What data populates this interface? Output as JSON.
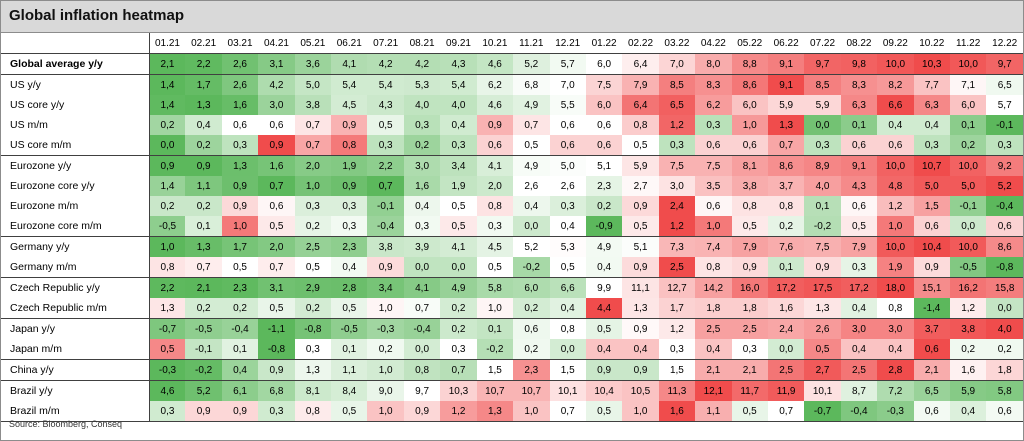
{
  "title": "Global inflation heatmap",
  "source": "Source: Bloomberg, Conseq",
  "colors": {
    "low": "#5cb85c",
    "mid": "#ffffff",
    "high": "#f04c4c"
  },
  "chart_data": {
    "type": "heatmap",
    "columns": [
      "01.21",
      "02.21",
      "03.21",
      "04.21",
      "05.21",
      "06.21",
      "07.21",
      "08.21",
      "09.21",
      "10.21",
      "11.21",
      "12.21",
      "01.22",
      "02.22",
      "03.22",
      "04.22",
      "05.22",
      "06.22",
      "07.22",
      "08.22",
      "09.22",
      "10.22",
      "11.22",
      "12.22"
    ],
    "rows": [
      {
        "label": "Global average y/y",
        "values": [
          "2,1",
          "2,2",
          "2,6",
          "3,1",
          "3,6",
          "4,1",
          "4,2",
          "4,2",
          "4,3",
          "4,6",
          "5,2",
          "5,7",
          "6,0",
          "6,4",
          "7,0",
          "8,0",
          "8,8",
          "9,1",
          "9,7",
          "9,8",
          "10,0",
          "10,3",
          "10,0",
          "9,7"
        ]
      },
      {
        "label": "US y/y",
        "values": [
          "1,4",
          "1,7",
          "2,6",
          "4,2",
          "5,0",
          "5,4",
          "5,4",
          "5,3",
          "5,4",
          "6,2",
          "6,8",
          "7,0",
          "7,5",
          "7,9",
          "8,5",
          "8,3",
          "8,6",
          "9,1",
          "8,5",
          "8,3",
          "8,2",
          "7,7",
          "7,1",
          "6,5"
        ]
      },
      {
        "label": "US core y/y",
        "values": [
          "1,4",
          "1,3",
          "1,6",
          "3,0",
          "3,8",
          "4,5",
          "4,3",
          "4,0",
          "4,0",
          "4,6",
          "4,9",
          "5,5",
          "6,0",
          "6,4",
          "6,5",
          "6,2",
          "6,0",
          "5,9",
          "5,9",
          "6,3",
          "6,6",
          "6,3",
          "6,0",
          "5,7"
        ]
      },
      {
        "label": "US m/m",
        "values": [
          "0,2",
          "0,4",
          "0,6",
          "0,6",
          "0,7",
          "0,9",
          "0,5",
          "0,3",
          "0,4",
          "0,9",
          "0,7",
          "0,6",
          "0,6",
          "0,8",
          "1,2",
          "0,3",
          "1,0",
          "1,3",
          "0,0",
          "0,1",
          "0,4",
          "0,4",
          "0,1",
          "-0,1"
        ]
      },
      {
        "label": "US core m/m",
        "values": [
          "0,0",
          "0,2",
          "0,3",
          "0,9",
          "0,7",
          "0,8",
          "0,3",
          "0,2",
          "0,3",
          "0,6",
          "0,5",
          "0,6",
          "0,6",
          "0,5",
          "0,3",
          "0,6",
          "0,6",
          "0,7",
          "0,3",
          "0,6",
          "0,6",
          "0,3",
          "0,2",
          "0,3"
        ]
      },
      {
        "label": "Eurozone y/y",
        "values": [
          "0,9",
          "0,9",
          "1,3",
          "1,6",
          "2,0",
          "1,9",
          "2,2",
          "3,0",
          "3,4",
          "4,1",
          "4,9",
          "5,0",
          "5,1",
          "5,9",
          "7,5",
          "7,5",
          "8,1",
          "8,6",
          "8,9",
          "9,1",
          "10,0",
          "10,7",
          "10,0",
          "9,2"
        ]
      },
      {
        "label": "Eurozone core y/y",
        "values": [
          "1,4",
          "1,1",
          "0,9",
          "0,7",
          "1,0",
          "0,9",
          "0,7",
          "1,6",
          "1,9",
          "2,0",
          "2,6",
          "2,6",
          "2,3",
          "2,7",
          "3,0",
          "3,5",
          "3,8",
          "3,7",
          "4,0",
          "4,3",
          "4,8",
          "5,0",
          "5,0",
          "5,2"
        ]
      },
      {
        "label": "Eurozone m/m",
        "values": [
          "0,2",
          "0,2",
          "0,9",
          "0,6",
          "0,3",
          "0,3",
          "-0,1",
          "0,4",
          "0,5",
          "0,8",
          "0,4",
          "0,3",
          "0,2",
          "0,9",
          "2,4",
          "0,6",
          "0,8",
          "0,8",
          "0,1",
          "0,6",
          "1,2",
          "1,5",
          "-0,1",
          "-0,4"
        ]
      },
      {
        "label": "Eurozone core m/m",
        "values": [
          "-0,5",
          "0,1",
          "1,0",
          "0,5",
          "0,2",
          "0,3",
          "-0,4",
          "0,3",
          "0,5",
          "0,3",
          "0,0",
          "0,4",
          "-0,9",
          "0,5",
          "1,2",
          "1,0",
          "0,5",
          "0,2",
          "-0,2",
          "0,5",
          "1,0",
          "0,6",
          "0,0",
          "0,6"
        ]
      },
      {
        "label": "Germany y/y",
        "values": [
          "1,0",
          "1,3",
          "1,7",
          "2,0",
          "2,5",
          "2,3",
          "3,8",
          "3,9",
          "4,1",
          "4,5",
          "5,2",
          "5,3",
          "4,9",
          "5,1",
          "7,3",
          "7,4",
          "7,9",
          "7,6",
          "7,5",
          "7,9",
          "10,0",
          "10,4",
          "10,0",
          "8,6"
        ]
      },
      {
        "label": "Germany m/m",
        "values": [
          "0,8",
          "0,7",
          "0,5",
          "0,7",
          "0,5",
          "0,4",
          "0,9",
          "0,0",
          "0,0",
          "0,5",
          "-0,2",
          "0,5",
          "0,4",
          "0,9",
          "2,5",
          "0,8",
          "0,9",
          "0,1",
          "0,9",
          "0,3",
          "1,9",
          "0,9",
          "-0,5",
          "-0,8"
        ]
      },
      {
        "label": "Czech Republic y/y",
        "values": [
          "2,2",
          "2,1",
          "2,3",
          "3,1",
          "2,9",
          "2,8",
          "3,4",
          "4,1",
          "4,9",
          "5,8",
          "6,0",
          "6,6",
          "9,9",
          "11,1",
          "12,7",
          "14,2",
          "16,0",
          "17,2",
          "17,5",
          "17,2",
          "18,0",
          "15,1",
          "16,2",
          "15,8"
        ]
      },
      {
        "label": "Czech Republic m/m",
        "values": [
          "1,3",
          "0,2",
          "0,2",
          "0,5",
          "0,2",
          "0,5",
          "1,0",
          "0,7",
          "0,2",
          "1,0",
          "0,2",
          "0,4",
          "4,4",
          "1,3",
          "1,7",
          "1,8",
          "1,8",
          "1,6",
          "1,3",
          "0,4",
          "0,8",
          "-1,4",
          "1,2",
          "0,0"
        ]
      },
      {
        "label": "Japan y/y",
        "values": [
          "-0,7",
          "-0,5",
          "-0,4",
          "-1,1",
          "-0,8",
          "-0,5",
          "-0,3",
          "-0,4",
          "0,2",
          "0,1",
          "0,6",
          "0,8",
          "0,5",
          "0,9",
          "1,2",
          "2,5",
          "2,5",
          "2,4",
          "2,6",
          "3,0",
          "3,0",
          "3,7",
          "3,8",
          "4,0"
        ]
      },
      {
        "label": "Japan m/m",
        "values": [
          "0,5",
          "-0,1",
          "0,1",
          "-0,8",
          "0,3",
          "0,1",
          "0,2",
          "0,0",
          "0,3",
          "-0,2",
          "0,2",
          "0,0",
          "0,4",
          "0,4",
          "0,3",
          "0,4",
          "0,3",
          "0,0",
          "0,5",
          "0,4",
          "0,4",
          "0,6",
          "0,2",
          "0,2"
        ]
      },
      {
        "label": "China y/y",
        "values": [
          "-0,3",
          "-0,2",
          "0,4",
          "0,9",
          "1,3",
          "1,1",
          "1,0",
          "0,8",
          "0,7",
          "1,5",
          "2,3",
          "1,5",
          "0,9",
          "0,9",
          "1,5",
          "2,1",
          "2,1",
          "2,5",
          "2,7",
          "2,5",
          "2,8",
          "2,1",
          "1,6",
          "1,8"
        ]
      },
      {
        "label": "Brazil y/y",
        "values": [
          "4,6",
          "5,2",
          "6,1",
          "6,8",
          "8,1",
          "8,4",
          "9,0",
          "9,7",
          "10,3",
          "10,7",
          "10,7",
          "10,1",
          "10,4",
          "10,5",
          "11,3",
          "12,1",
          "11,7",
          "11,9",
          "10,1",
          "8,7",
          "7,2",
          "6,5",
          "5,9",
          "5,8"
        ]
      },
      {
        "label": "Brazil m/m",
        "values": [
          "0,3",
          "0,9",
          "0,9",
          "0,3",
          "0,8",
          "0,5",
          "1,0",
          "0,9",
          "1,2",
          "1,3",
          "1,0",
          "0,7",
          "0,5",
          "1,0",
          "1,6",
          "1,1",
          "0,5",
          "0,7",
          "-0,7",
          "-0,4",
          "-0,3",
          "0,6",
          "0,4",
          "0,6"
        ]
      }
    ],
    "group_ends": [
      0,
      4,
      8,
      10,
      12,
      14,
      15,
      17
    ]
  }
}
